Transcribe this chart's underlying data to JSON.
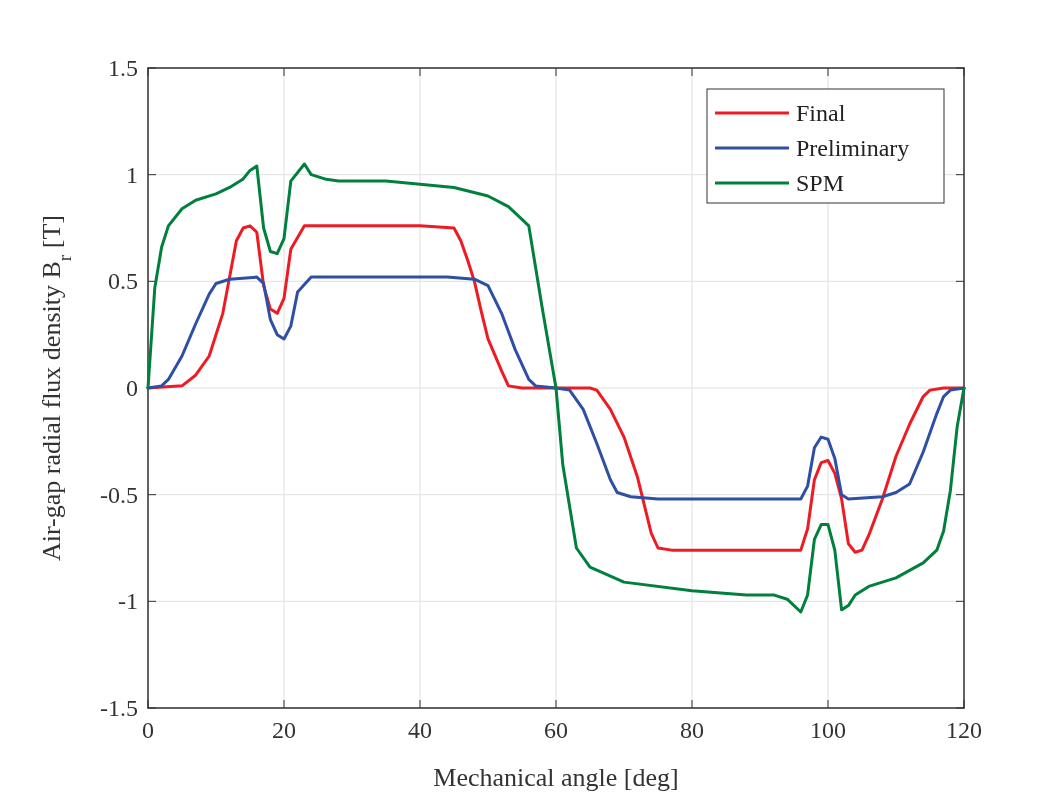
{
  "chart_data": {
    "type": "line",
    "xlabel": "Mechanical angle [deg]",
    "ylabel": "Air-gap radial flux density B$_{r}$ [T]",
    "xlim": [
      0,
      120
    ],
    "ylim": [
      -1.5,
      1.5
    ],
    "xticks": [
      0,
      20,
      40,
      60,
      80,
      100,
      120
    ],
    "yticks": [
      -1.5,
      -1,
      -0.5,
      0,
      0.5,
      1,
      1.5
    ],
    "grid": true,
    "legend": "top right",
    "line_style": "solid",
    "marker": "none",
    "series": [
      {
        "name": "Final",
        "color": "#ed1c24",
        "x": [
          0,
          5,
          7,
          9,
          11,
          13,
          14,
          15,
          16,
          17,
          18,
          19,
          20,
          21,
          23,
          40,
          45,
          46,
          47,
          48,
          49,
          50,
          52,
          53,
          55,
          65,
          66,
          68,
          70,
          72,
          74,
          75,
          77,
          96,
          97,
          98,
          99,
          100,
          101,
          102,
          103,
          104,
          105,
          106,
          108,
          110,
          112,
          114,
          115,
          117,
          120
        ],
        "values": [
          0,
          0.01,
          0.06,
          0.15,
          0.35,
          0.69,
          0.75,
          0.76,
          0.73,
          0.48,
          0.37,
          0.35,
          0.42,
          0.65,
          0.76,
          0.76,
          0.75,
          0.69,
          0.6,
          0.5,
          0.36,
          0.23,
          0.08,
          0.01,
          0,
          0,
          -0.01,
          -0.1,
          -0.23,
          -0.42,
          -0.68,
          -0.75,
          -0.76,
          -0.76,
          -0.66,
          -0.43,
          -0.35,
          -0.34,
          -0.4,
          -0.52,
          -0.73,
          -0.77,
          -0.76,
          -0.69,
          -0.52,
          -0.32,
          -0.17,
          -0.04,
          -0.01,
          0,
          0
        ]
      },
      {
        "name": "Preliminary",
        "color": "#2e4fa3",
        "x": [
          0,
          2,
          3,
          5,
          7,
          9,
          10,
          12,
          16,
          17,
          18,
          19,
          20,
          21,
          22,
          24,
          44,
          48,
          50,
          52,
          54,
          56,
          57,
          60,
          62,
          64,
          66,
          68,
          69,
          71,
          75,
          96,
          97,
          98,
          99,
          100,
          101,
          102,
          103,
          108,
          110,
          112,
          114,
          116,
          117,
          118,
          120
        ],
        "values": [
          0,
          0.01,
          0.04,
          0.15,
          0.3,
          0.44,
          0.49,
          0.51,
          0.52,
          0.49,
          0.32,
          0.25,
          0.23,
          0.29,
          0.45,
          0.52,
          0.52,
          0.51,
          0.48,
          0.35,
          0.18,
          0.04,
          0.01,
          0,
          -0.01,
          -0.1,
          -0.26,
          -0.43,
          -0.49,
          -0.51,
          -0.52,
          -0.52,
          -0.46,
          -0.28,
          -0.23,
          -0.24,
          -0.33,
          -0.5,
          -0.52,
          -0.51,
          -0.49,
          -0.45,
          -0.3,
          -0.12,
          -0.04,
          -0.01,
          0
        ]
      },
      {
        "name": "SPM",
        "color": "#00803c",
        "x": [
          0,
          1,
          2,
          3,
          5,
          7,
          10,
          12,
          14,
          15,
          16,
          17,
          18,
          19,
          20,
          21,
          23,
          24,
          26,
          28,
          35,
          45,
          50,
          53,
          55,
          56,
          58,
          60,
          61,
          63,
          65,
          70,
          80,
          88,
          92,
          94,
          96,
          97,
          98,
          99,
          100,
          101,
          102,
          103,
          104,
          106,
          110,
          114,
          116,
          117,
          118,
          119,
          120
        ],
        "values": [
          0,
          0.47,
          0.66,
          0.76,
          0.84,
          0.88,
          0.91,
          0.94,
          0.98,
          1.02,
          1.04,
          0.75,
          0.64,
          0.63,
          0.7,
          0.97,
          1.05,
          1,
          0.98,
          0.97,
          0.97,
          0.94,
          0.9,
          0.85,
          0.79,
          0.76,
          0.37,
          0,
          -0.36,
          -0.75,
          -0.84,
          -0.91,
          -0.95,
          -0.97,
          -0.97,
          -0.99,
          -1.05,
          -0.97,
          -0.71,
          -0.64,
          -0.64,
          -0.76,
          -1.04,
          -1.02,
          -0.97,
          -0.93,
          -0.89,
          -0.82,
          -0.76,
          -0.67,
          -0.48,
          -0.18,
          0
        ]
      }
    ]
  }
}
